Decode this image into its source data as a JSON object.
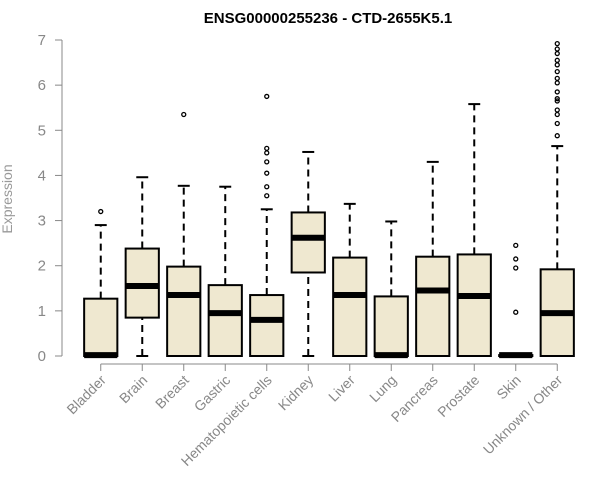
{
  "chart_data": {
    "type": "boxplot",
    "title": "ENSG00000255236 - CTD-2655K5.1",
    "xlabel": "",
    "ylabel": "Expression",
    "ylim": [
      0,
      7
    ],
    "yticks": [
      0,
      1,
      2,
      3,
      4,
      5,
      6,
      7
    ],
    "box_fill": "#efe8d0",
    "box_stroke": "#000000",
    "axis_color": "#888888",
    "grid": false,
    "categories": [
      "Bladder",
      "Brain",
      "Breast",
      "Gastric",
      "Hematopoietic cells",
      "Kidney",
      "Liver",
      "Lung",
      "Pancreas",
      "Prostate",
      "Skin",
      "Unknown / Other"
    ],
    "boxes": [
      {
        "category": "Bladder",
        "whisker_low": 0,
        "q1": 0,
        "median": 0.02,
        "q3": 1.27,
        "whisker_high": 2.9,
        "outliers": [
          3.2
        ]
      },
      {
        "category": "Brain",
        "whisker_low": 0,
        "q1": 0.85,
        "median": 1.55,
        "q3": 2.38,
        "whisker_high": 3.96,
        "outliers": []
      },
      {
        "category": "Breast",
        "whisker_low": 0,
        "q1": 0,
        "median": 1.35,
        "q3": 1.98,
        "whisker_high": 3.77,
        "outliers": [
          5.35
        ]
      },
      {
        "category": "Gastric",
        "whisker_low": 0,
        "q1": 0,
        "median": 0.95,
        "q3": 1.57,
        "whisker_high": 3.75,
        "outliers": []
      },
      {
        "category": "Hematopoietic cells",
        "whisker_low": 0,
        "q1": 0,
        "median": 0.8,
        "q3": 1.35,
        "whisker_high": 3.25,
        "outliers": [
          3.55,
          3.75,
          4.05,
          4.3,
          4.5,
          4.6,
          5.75
        ]
      },
      {
        "category": "Kidney",
        "whisker_low": 0,
        "q1": 1.85,
        "median": 2.62,
        "q3": 3.18,
        "whisker_high": 4.52,
        "outliers": []
      },
      {
        "category": "Liver",
        "whisker_low": 0,
        "q1": 0,
        "median": 1.35,
        "q3": 2.18,
        "whisker_high": 3.37,
        "outliers": []
      },
      {
        "category": "Lung",
        "whisker_low": 0,
        "q1": 0,
        "median": 0.02,
        "q3": 1.32,
        "whisker_high": 2.98,
        "outliers": []
      },
      {
        "category": "Pancreas",
        "whisker_low": 0,
        "q1": 0,
        "median": 1.45,
        "q3": 2.2,
        "whisker_high": 4.3,
        "outliers": []
      },
      {
        "category": "Prostate",
        "whisker_low": 0,
        "q1": 0,
        "median": 1.33,
        "q3": 2.25,
        "whisker_high": 5.58,
        "outliers": []
      },
      {
        "category": "Skin",
        "whisker_low": 0,
        "q1": 0,
        "median": 0.02,
        "q3": 0.02,
        "whisker_high": 0.02,
        "outliers": [
          0.97,
          1.95,
          2.15,
          2.45
        ]
      },
      {
        "category": "Unknown / Other",
        "whisker_low": 0,
        "q1": 0,
        "median": 0.95,
        "q3": 1.92,
        "whisker_high": 4.65,
        "outliers": [
          4.88,
          5.15,
          5.35,
          5.45,
          5.65,
          5.7,
          5.85,
          6.05,
          6.15,
          6.3,
          6.45,
          6.55,
          6.7,
          6.8,
          6.92
        ]
      }
    ]
  }
}
